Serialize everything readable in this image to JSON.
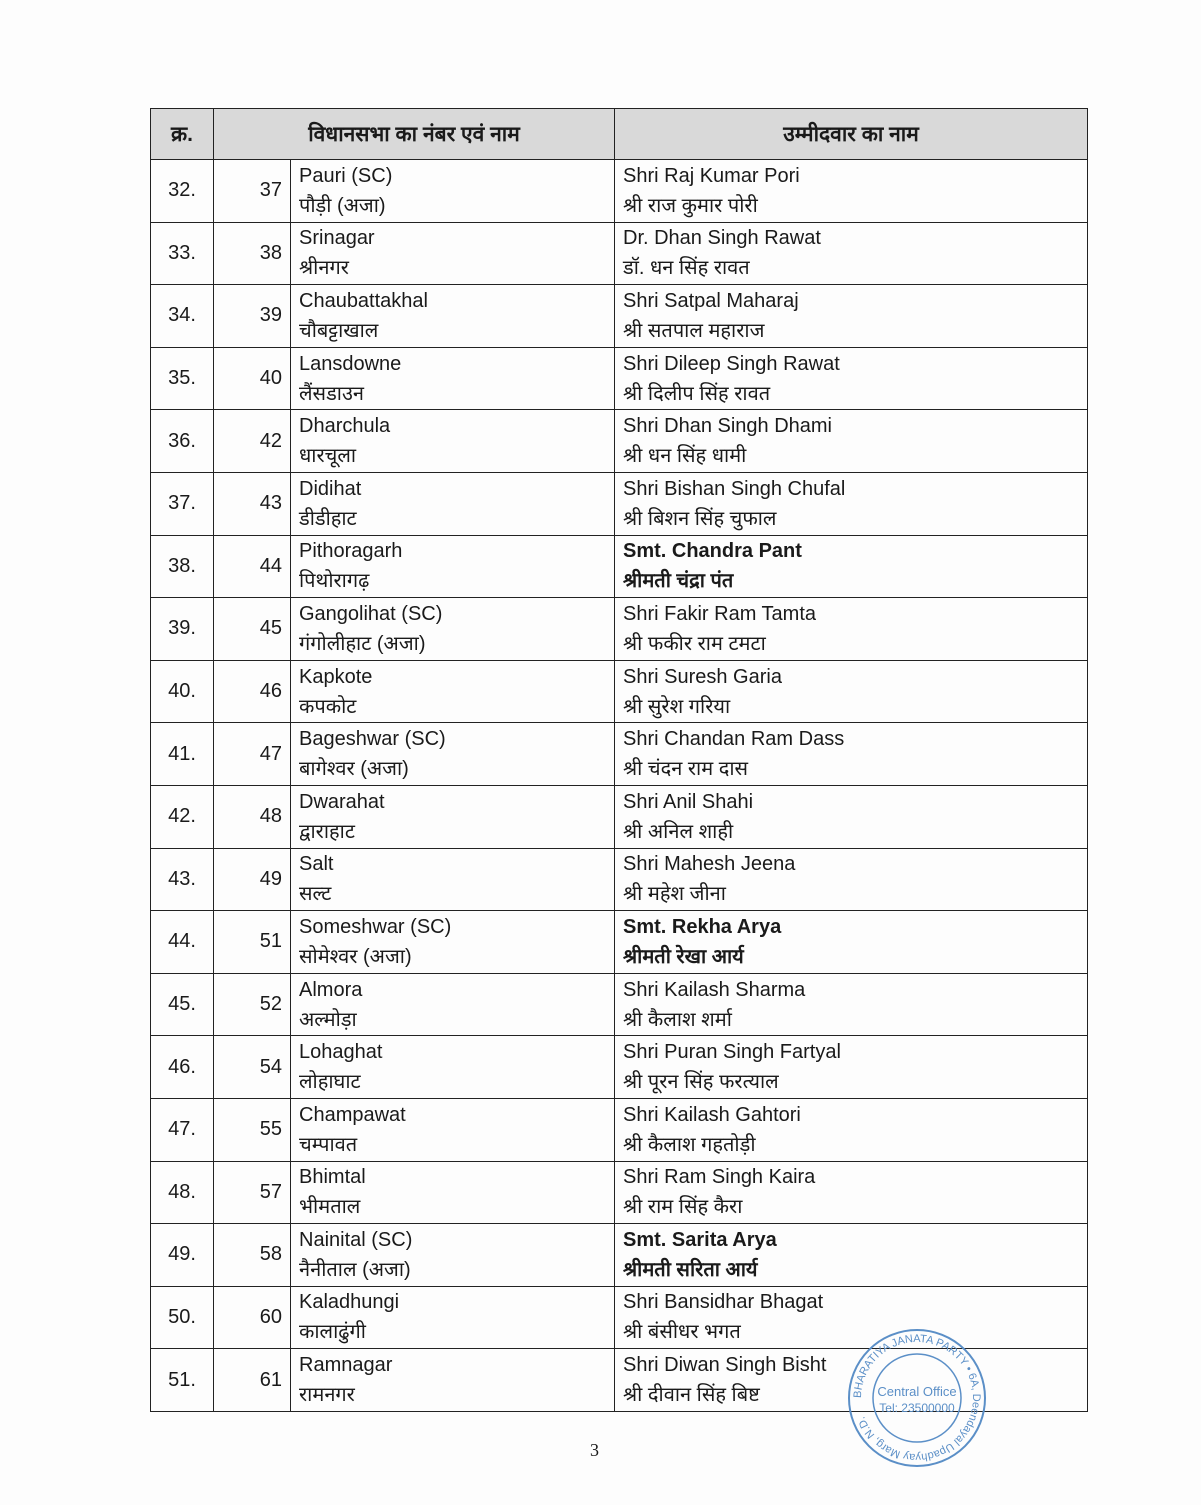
{
  "header": {
    "sr": "क्र.",
    "constituency": "विधानसभा का नंबर एवं नाम",
    "candidate": "उम्मीदवार का नाम"
  },
  "rows": [
    {
      "sr": "32.",
      "num": "37",
      "cons_en": "Pauri (SC)",
      "cons_hi": "पौड़ी (अजा)",
      "cand_en": "Shri Raj Kumar Pori",
      "cand_hi": "श्री राज कुमार पोरी",
      "bold": false
    },
    {
      "sr": "33.",
      "num": "38",
      "cons_en": "Srinagar",
      "cons_hi": "श्रीनगर",
      "cand_en": "Dr. Dhan Singh Rawat",
      "cand_hi": "डॉ. धन सिंह रावत",
      "bold": false
    },
    {
      "sr": "34.",
      "num": "39",
      "cons_en": "Chaubattakhal",
      "cons_hi": "चौबट्टाखाल",
      "cand_en": "Shri Satpal Maharaj",
      "cand_hi": "श्री सतपाल महाराज",
      "bold": false
    },
    {
      "sr": "35.",
      "num": "40",
      "cons_en": "Lansdowne",
      "cons_hi": "लैंसडाउन",
      "cand_en": "Shri Dileep Singh Rawat",
      "cand_hi": "श्री दिलीप सिंह रावत",
      "bold": false
    },
    {
      "sr": "36.",
      "num": "42",
      "cons_en": "Dharchula",
      "cons_hi": "धारचूला",
      "cand_en": "Shri Dhan Singh Dhami",
      "cand_hi": "श्री धन सिंह धामी",
      "bold": false
    },
    {
      "sr": "37.",
      "num": "43",
      "cons_en": "Didihat",
      "cons_hi": "डीडीहाट",
      "cand_en": "Shri Bishan Singh Chufal",
      "cand_hi": "श्री बिशन सिंह चुफाल",
      "bold": false
    },
    {
      "sr": "38.",
      "num": "44",
      "cons_en": "Pithoragarh",
      "cons_hi": "पिथोरागढ़",
      "cand_en": "Smt. Chandra Pant",
      "cand_hi": "श्रीमती चंद्रा पंत",
      "bold": true
    },
    {
      "sr": "39.",
      "num": "45",
      "cons_en": "Gangolihat (SC)",
      "cons_hi": "गंगोलीहाट (अजा)",
      "cand_en": "Shri Fakir Ram Tamta",
      "cand_hi": "श्री फकीर राम टमटा",
      "bold": false
    },
    {
      "sr": "40.",
      "num": "46",
      "cons_en": "Kapkote",
      "cons_hi": "कपकोट",
      "cand_en": "Shri Suresh Garia",
      "cand_hi": "श्री सुरेश गरिया",
      "bold": false
    },
    {
      "sr": "41.",
      "num": "47",
      "cons_en": "Bageshwar (SC)",
      "cons_hi": "बागेश्वर (अजा)",
      "cand_en": "Shri Chandan Ram Dass",
      "cand_hi": "श्री चंदन राम दास",
      "bold": false
    },
    {
      "sr": "42.",
      "num": "48",
      "cons_en": "Dwarahat",
      "cons_hi": "द्वाराहाट",
      "cand_en": "Shri Anil Shahi",
      "cand_hi": "श्री अनिल शाही",
      "bold": false
    },
    {
      "sr": "43.",
      "num": "49",
      "cons_en": "Salt",
      "cons_hi": "सल्ट",
      "cand_en": "Shri Mahesh Jeena",
      "cand_hi": "श्री महेश जीना",
      "bold": false
    },
    {
      "sr": "44.",
      "num": "51",
      "cons_en": "Someshwar (SC)",
      "cons_hi": "सोमेश्वर (अजा)",
      "cand_en": "Smt. Rekha Arya",
      "cand_hi": "श्रीमती रेखा आर्य",
      "bold": true
    },
    {
      "sr": "45.",
      "num": "52",
      "cons_en": "Almora",
      "cons_hi": "अल्मोड़ा",
      "cand_en": "Shri Kailash Sharma",
      "cand_hi": "श्री कैलाश शर्मा",
      "bold": false
    },
    {
      "sr": "46.",
      "num": "54",
      "cons_en": "Lohaghat",
      "cons_hi": "लोहाघाट",
      "cand_en": "Shri Puran Singh Fartyal",
      "cand_hi": "श्री पूरन सिंह फरत्याल",
      "bold": false
    },
    {
      "sr": "47.",
      "num": "55",
      "cons_en": "Champawat",
      "cons_hi": "चम्पावत",
      "cand_en": "Shri Kailash Gahtori",
      "cand_hi": "श्री कैलाश गहतोड़ी",
      "bold": false
    },
    {
      "sr": "48.",
      "num": "57",
      "cons_en": "Bhimtal",
      "cons_hi": "भीमताल",
      "cand_en": "Shri Ram Singh Kaira",
      "cand_hi": "श्री राम सिंह कैरा",
      "bold": false
    },
    {
      "sr": "49.",
      "num": "58",
      "cons_en": "Nainital (SC)",
      "cons_hi": "नैनीताल (अजा)",
      "cand_en": "Smt. Sarita Arya",
      "cand_hi": "श्रीमती सरिता आर्य",
      "bold": true
    },
    {
      "sr": "50.",
      "num": "60",
      "cons_en": "Kaladhungi",
      "cons_hi": "कालाढुंगी",
      "cand_en": "Shri Bansidhar Bhagat",
      "cand_hi": "श्री बंसीधर भगत",
      "bold": false
    },
    {
      "sr": "51.",
      "num": "61",
      "cons_en": "Ramnagar",
      "cons_hi": "रामनगर",
      "cand_en": "Shri Diwan Singh Bisht",
      "cand_hi": "श्री दीवान सिंह बिष्ट",
      "bold": false
    }
  ],
  "page_number": "3",
  "stamp": {
    "ring": "BHARATIYA JANATA PARTY • 6A, Deendayal Upadhyay Marg, N.D.",
    "line1": "Central Office",
    "line2": "Tel: 23500000",
    "color": "#5b8fc7"
  }
}
